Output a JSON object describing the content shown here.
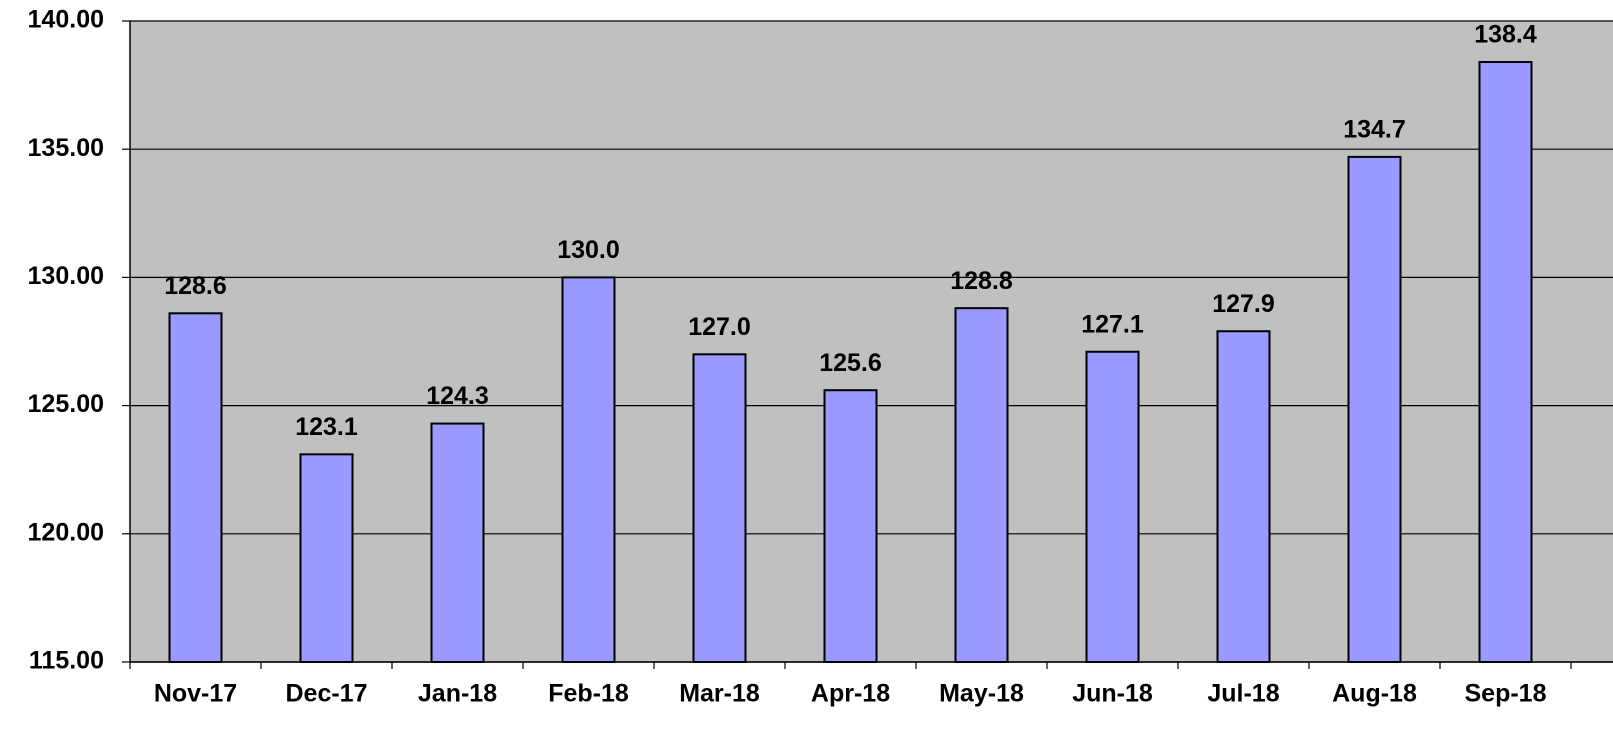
{
  "chart_data": {
    "type": "bar",
    "categories": [
      "Nov-17",
      "Dec-17",
      "Jan-18",
      "Feb-18",
      "Mar-18",
      "Apr-18",
      "May-18",
      "Jun-18",
      "Jul-18",
      "Aug-18",
      "Sep-18"
    ],
    "values": [
      128.6,
      123.1,
      124.3,
      130.0,
      127.0,
      125.6,
      128.8,
      127.1,
      127.9,
      134.7,
      138.4
    ],
    "value_labels": [
      "128.6",
      "123.1",
      "124.3",
      "130.0",
      "127.0",
      "125.6",
      "128.8",
      "127.1",
      "127.9",
      "134.7",
      "138.4"
    ],
    "color": "#9999ff",
    "ylim": [
      115,
      140
    ],
    "yticks": [
      {
        "value": 115,
        "label": "115.00"
      },
      {
        "value": 120,
        "label": "120.00"
      },
      {
        "value": 125,
        "label": "125.00"
      },
      {
        "value": 130,
        "label": "130.00"
      },
      {
        "value": 135,
        "label": "135.00"
      },
      {
        "value": 140,
        "label": "140.00"
      }
    ],
    "grid": true
  }
}
